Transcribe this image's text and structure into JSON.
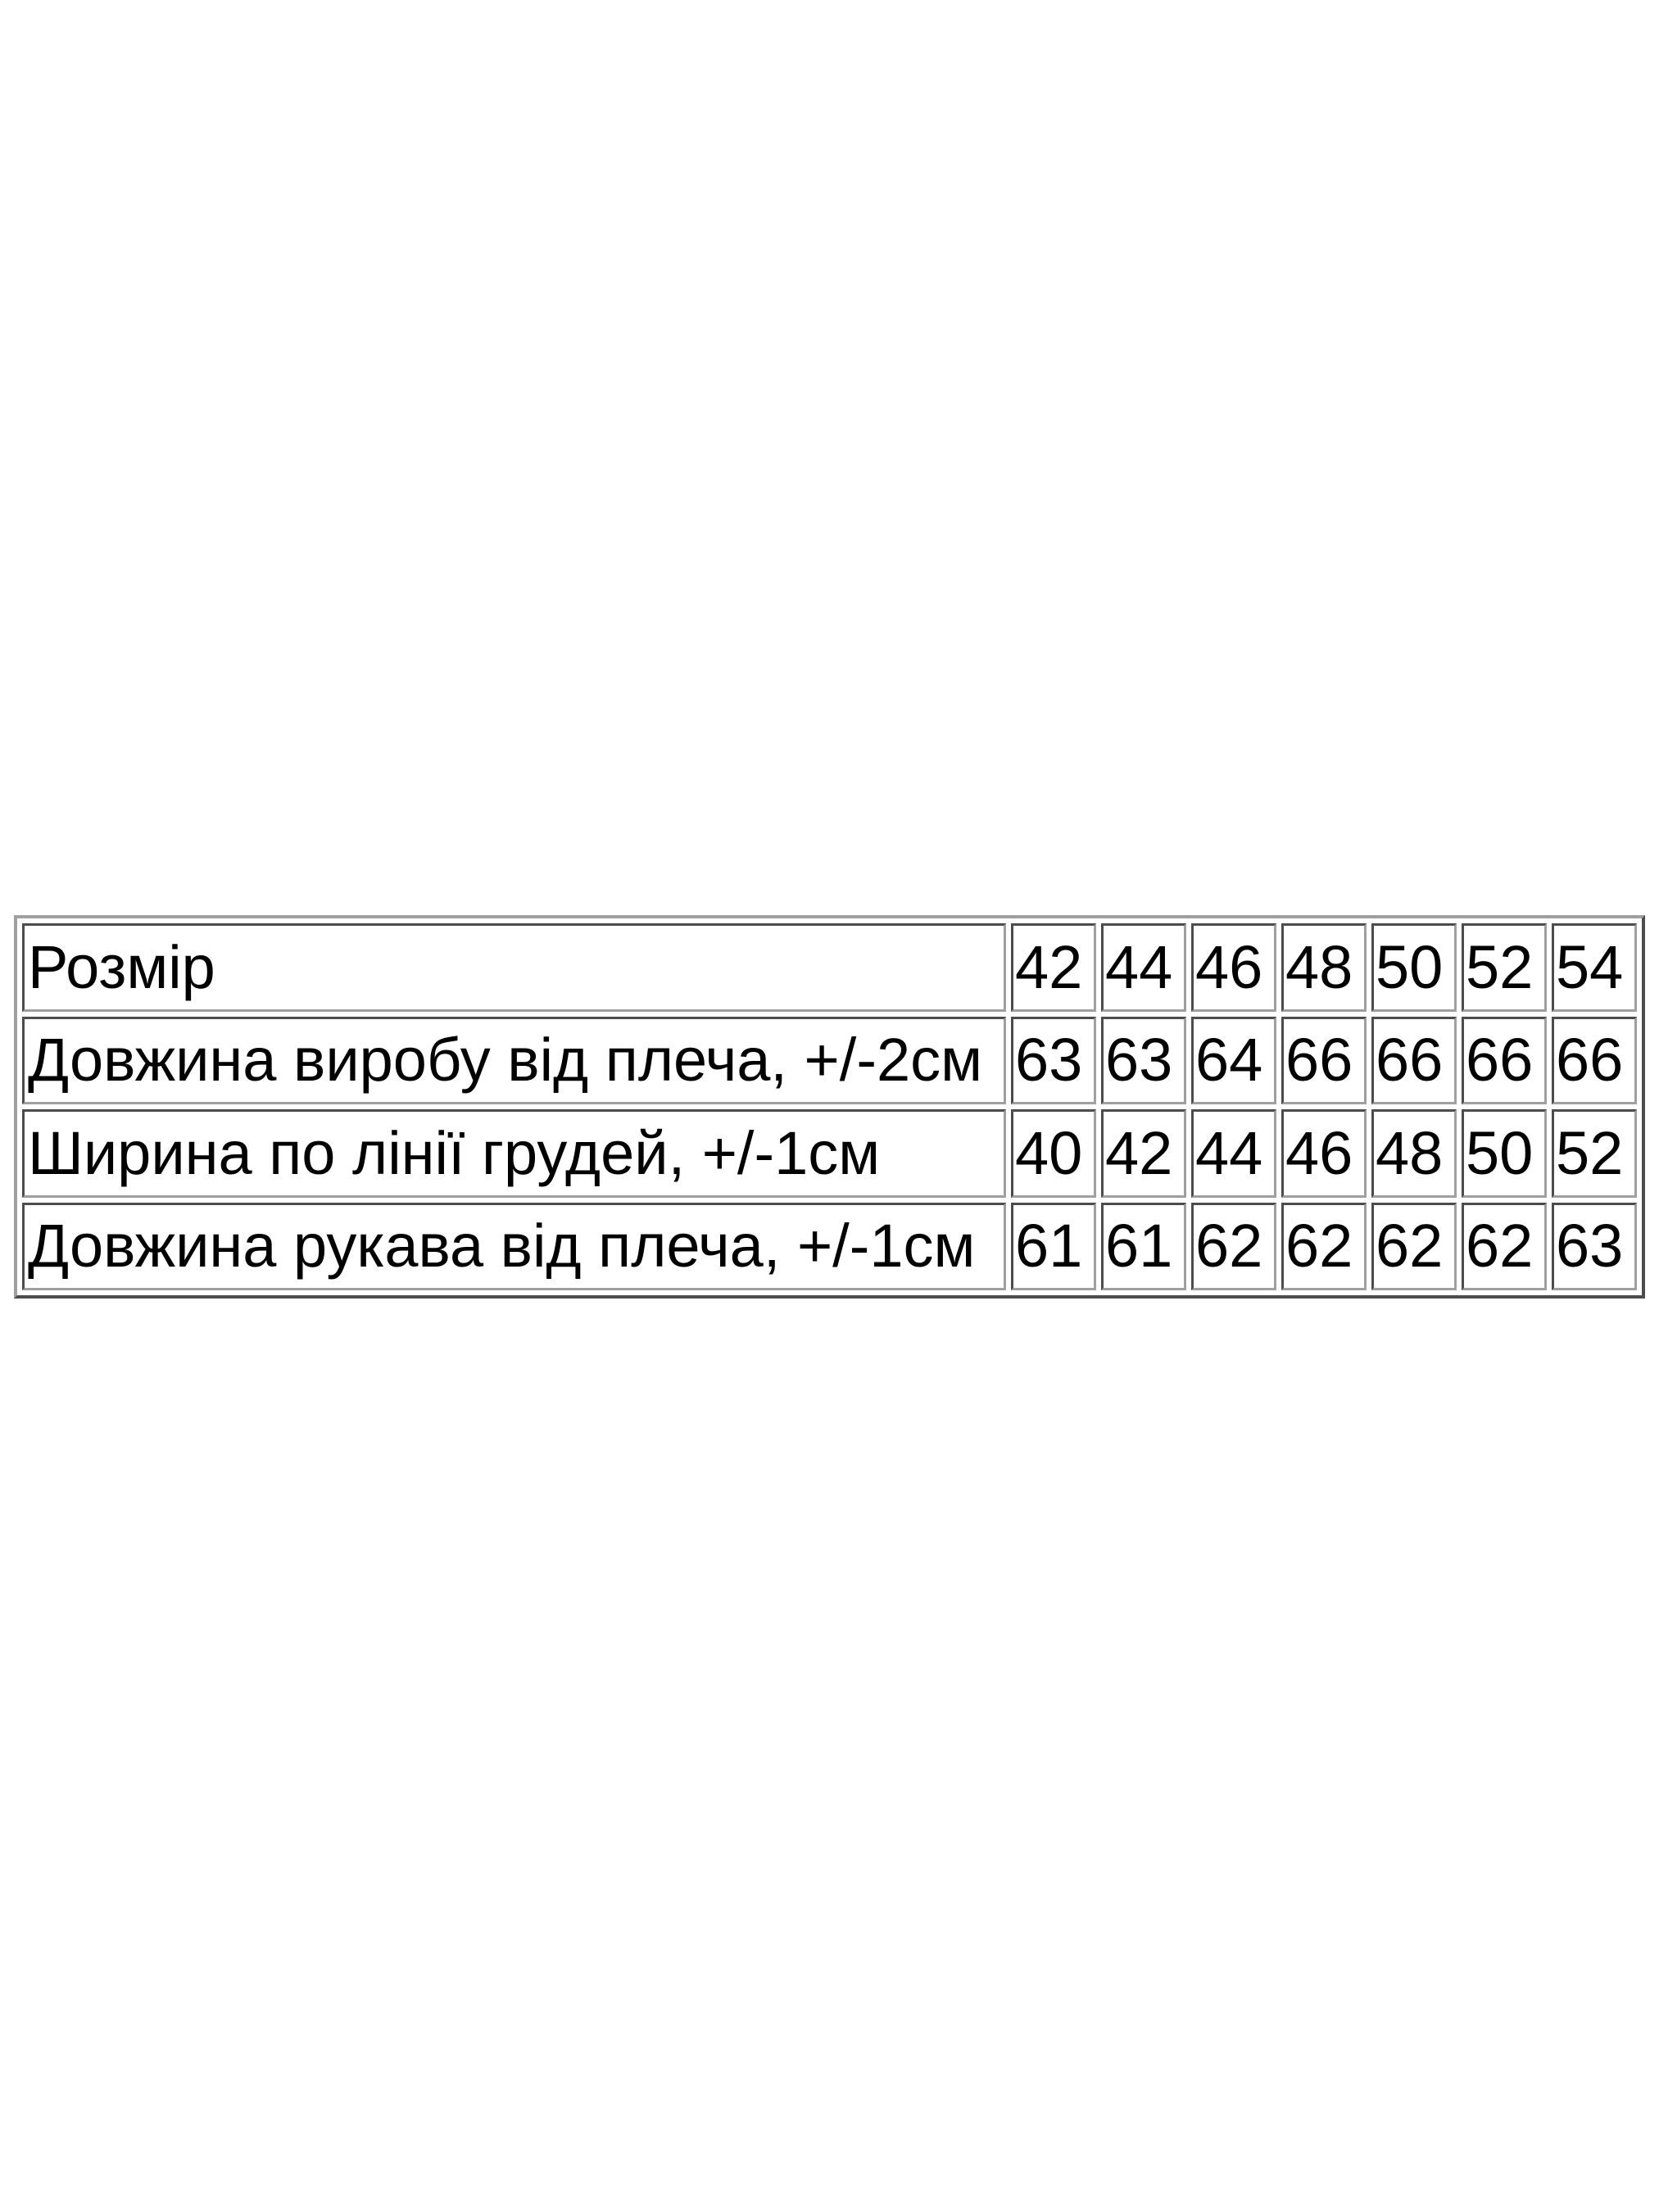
{
  "size_table": {
    "header": {
      "label": "Розмір",
      "values": [
        "42",
        "44",
        "46",
        "48",
        "50",
        "52",
        "54"
      ]
    },
    "rows": [
      {
        "label": "Довжина виробу від плеча, +/-2см",
        "values": [
          "63",
          "63",
          "64",
          "66",
          "66",
          "66",
          "66"
        ]
      },
      {
        "label": "Ширина по лінії грудей, +/-1см",
        "values": [
          "40",
          "42",
          "44",
          "46",
          "48",
          "50",
          "52"
        ]
      },
      {
        "label": "Довжина рукава від плеча, +/-1см",
        "values": [
          "61",
          "61",
          "62",
          "62",
          "62",
          "62",
          "63"
        ]
      }
    ]
  }
}
